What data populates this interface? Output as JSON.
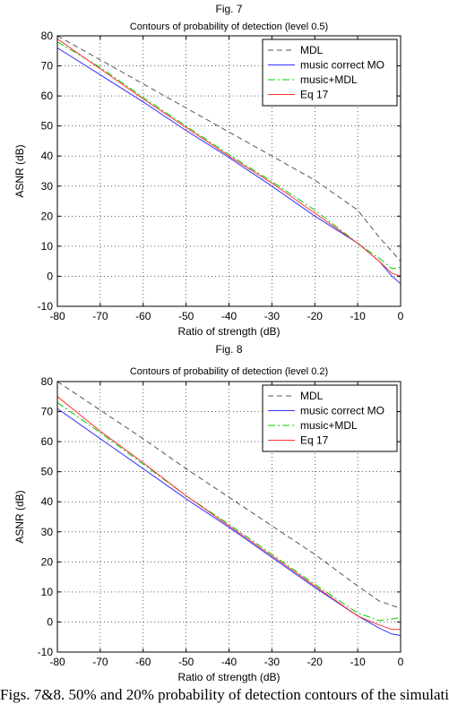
{
  "caption": "Figs. 7&8. 50% and 20% probability of detection contours of the simulati",
  "chart_data": [
    {
      "type": "line",
      "label": "Fig. 7",
      "title": "Contours of probability of detection (level 0.5)",
      "xlabel": "Ratio of strength (dB)",
      "ylabel": "ASNR (dB)",
      "xlim": [
        -80,
        0
      ],
      "ylim": [
        -10,
        80
      ],
      "xticks": [
        -80,
        -70,
        -60,
        -50,
        -40,
        -30,
        -20,
        -10,
        0
      ],
      "yticks": [
        -10,
        0,
        10,
        20,
        30,
        40,
        50,
        60,
        70,
        80
      ],
      "grid": true,
      "legend_position": "top-right",
      "series": [
        {
          "name": "MDL",
          "color": "#555555",
          "style": "dashed",
          "x": [
            -80,
            -70,
            -60,
            -50,
            -40,
            -30,
            -20,
            -10,
            -5,
            0
          ],
          "y": [
            80,
            72,
            64,
            56,
            48,
            40,
            32,
            22,
            13,
            5
          ]
        },
        {
          "name": "music correct MO",
          "color": "#3333ff",
          "style": "solid",
          "x": [
            -80,
            -70,
            -60,
            -50,
            -40,
            -30,
            -20,
            -10,
            -5,
            -2,
            0
          ],
          "y": [
            76,
            67,
            58,
            48.5,
            39.5,
            30,
            20,
            11,
            5,
            0,
            -2.5
          ]
        },
        {
          "name": "music+MDL",
          "color": "#00cc00",
          "style": "dashdot",
          "x": [
            -80,
            -70,
            -60,
            -50,
            -40,
            -30,
            -20,
            -10,
            -5,
            -2,
            0
          ],
          "y": [
            78,
            69.5,
            59.5,
            50,
            40.5,
            31.5,
            22,
            11,
            6,
            2.5,
            3
          ]
        },
        {
          "name": "Eq 17",
          "color": "#ff3333",
          "style": "solid",
          "x": [
            -80,
            -70,
            -60,
            -50,
            -40,
            -30,
            -20,
            -10,
            -5,
            -2,
            0
          ],
          "y": [
            79,
            69,
            59,
            49.5,
            40,
            31,
            21,
            11,
            5,
            1,
            0
          ]
        }
      ]
    },
    {
      "type": "line",
      "label": "Fig. 8",
      "title": "Contours of probability of detection (level 0.2)",
      "xlabel": "Ratio of strength (dB)",
      "ylabel": "ASNR (dB)",
      "xlim": [
        -80,
        0
      ],
      "ylim": [
        -10,
        80
      ],
      "xticks": [
        -80,
        -70,
        -60,
        -50,
        -40,
        -30,
        -20,
        -10,
        0
      ],
      "yticks": [
        -10,
        0,
        10,
        20,
        30,
        40,
        50,
        60,
        70,
        80
      ],
      "grid": true,
      "legend_position": "top-right",
      "series": [
        {
          "name": "MDL",
          "color": "#555555",
          "style": "dashed",
          "x": [
            -80,
            -70,
            -60,
            -50,
            -40,
            -30,
            -20,
            -10,
            -5,
            0
          ],
          "y": [
            80,
            70.5,
            61,
            51,
            41.5,
            32,
            22.5,
            12,
            7,
            4.5
          ]
        },
        {
          "name": "music correct MO",
          "color": "#3333ff",
          "style": "solid",
          "x": [
            -80,
            -70,
            -60,
            -50,
            -40,
            -30,
            -20,
            -10,
            -5,
            -2,
            0
          ],
          "y": [
            71,
            61,
            51,
            41,
            31.5,
            21.5,
            11.5,
            2,
            -2,
            -4,
            -4.5
          ]
        },
        {
          "name": "music+MDL",
          "color": "#00cc00",
          "style": "dashdot",
          "x": [
            -80,
            -70,
            -60,
            -50,
            -40,
            -30,
            -20,
            -10,
            -5,
            -2,
            0
          ],
          "y": [
            73,
            63,
            52.5,
            42,
            32.5,
            22.5,
            12.5,
            3,
            0.5,
            1,
            1.5
          ]
        },
        {
          "name": "Eq 17",
          "color": "#ff3333",
          "style": "solid",
          "x": [
            -80,
            -70,
            -60,
            -50,
            -40,
            -30,
            -20,
            -10,
            -5,
            -2,
            0
          ],
          "y": [
            75,
            63.5,
            53,
            42,
            32,
            22,
            12,
            2,
            -1,
            -2.5,
            -2.5
          ]
        }
      ]
    }
  ]
}
